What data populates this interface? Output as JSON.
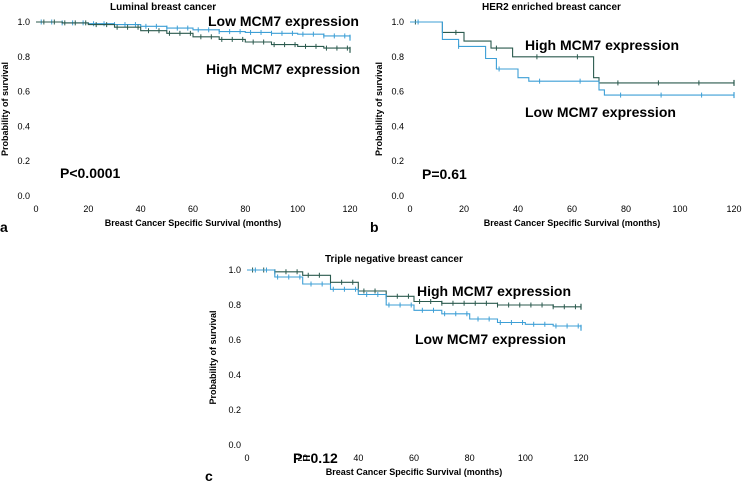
{
  "chart_data": [
    {
      "type": "line",
      "id": "a",
      "panel_letter": "a",
      "title": "Luminal breast cancer",
      "xlabel": "Breast Cancer Specific Survival (months)",
      "ylabel": "Probability of survival",
      "xlim": [
        0,
        120
      ],
      "ylim": [
        0,
        1.0
      ],
      "xticks": [
        0,
        20,
        40,
        60,
        80,
        100,
        120
      ],
      "yticks": [
        "0.0",
        "0.2",
        "0.4",
        "0.6",
        "0.8",
        "1.0"
      ],
      "p_value": "P<0.0001",
      "series": [
        {
          "name": "Low MCM7 expression",
          "label": "Low  MCM7 expression",
          "color": "#3d9fd6",
          "x": [
            0,
            10,
            20,
            30,
            40,
            50,
            60,
            70,
            80,
            90,
            100,
            110,
            120
          ],
          "y": [
            1.0,
            0.995,
            0.99,
            0.985,
            0.975,
            0.965,
            0.955,
            0.945,
            0.94,
            0.935,
            0.93,
            0.92,
            0.91
          ]
        },
        {
          "name": "High MCM7 expression",
          "label": "High  MCM7 expression",
          "color": "#2b5a4e",
          "x": [
            0,
            10,
            20,
            30,
            40,
            50,
            60,
            70,
            80,
            90,
            100,
            110,
            120
          ],
          "y": [
            1.0,
            0.995,
            0.985,
            0.97,
            0.95,
            0.935,
            0.915,
            0.9,
            0.885,
            0.87,
            0.86,
            0.85,
            0.84
          ]
        }
      ]
    },
    {
      "type": "line",
      "id": "b",
      "panel_letter": "b",
      "title": "HER2 enriched breast cancer",
      "xlabel": "Breast Cancer Specific Survival (months)",
      "ylabel": "Probability of survival",
      "xlim": [
        0,
        120
      ],
      "ylim": [
        0,
        1.0
      ],
      "xticks": [
        0,
        20,
        40,
        60,
        80,
        100,
        120
      ],
      "yticks": [
        "0.0",
        "0.2",
        "0.4",
        "0.6",
        "0.8",
        "1.0"
      ],
      "p_value": "P=0.61",
      "series": [
        {
          "name": "High MCM7 expression",
          "label": "High  MCM7 expression",
          "color": "#2b5a4e",
          "x": [
            0,
            10,
            12,
            20,
            30,
            38,
            42,
            60,
            68,
            70,
            100,
            120
          ],
          "y": [
            1.0,
            1.0,
            0.94,
            0.89,
            0.85,
            0.8,
            0.8,
            0.8,
            0.68,
            0.65,
            0.65,
            0.65
          ]
        },
        {
          "name": "Low MCM7 expression",
          "label": "Low  MCM7 expression",
          "color": "#3d9fd6",
          "x": [
            0,
            8,
            12,
            18,
            28,
            32,
            40,
            44,
            60,
            70,
            72,
            120
          ],
          "y": [
            1.0,
            1.0,
            0.9,
            0.86,
            0.79,
            0.73,
            0.68,
            0.66,
            0.66,
            0.61,
            0.58,
            0.58
          ]
        }
      ]
    },
    {
      "type": "line",
      "id": "c",
      "panel_letter": "c",
      "title": "Triple negative breast cancer",
      "xlabel": "Breast Cancer Specific Survival (months)",
      "ylabel": "Probability of survival",
      "xlim": [
        0,
        120
      ],
      "ylim": [
        0,
        1.0
      ],
      "xticks": [
        0,
        20,
        40,
        60,
        80,
        100,
        120
      ],
      "yticks": [
        "0.0",
        "0.2",
        "0.4",
        "0.6",
        "0.8",
        "1.0"
      ],
      "p_value": "P=0.12",
      "series": [
        {
          "name": "High MCM7 expression",
          "label": "High  MCM7 expression",
          "color": "#2b5a4e",
          "x": [
            0,
            10,
            20,
            30,
            40,
            50,
            60,
            70,
            80,
            90,
            100,
            110,
            120
          ],
          "y": [
            1.0,
            0.99,
            0.97,
            0.93,
            0.88,
            0.85,
            0.82,
            0.81,
            0.81,
            0.8,
            0.8,
            0.79,
            0.79
          ]
        },
        {
          "name": "Low MCM7 expression",
          "label": "Low  MCM7 expression",
          "color": "#3d9fd6",
          "x": [
            0,
            10,
            20,
            30,
            40,
            50,
            60,
            70,
            80,
            90,
            100,
            110,
            120
          ],
          "y": [
            1.0,
            0.96,
            0.92,
            0.89,
            0.86,
            0.8,
            0.77,
            0.75,
            0.72,
            0.7,
            0.69,
            0.68,
            0.67
          ]
        }
      ]
    }
  ]
}
